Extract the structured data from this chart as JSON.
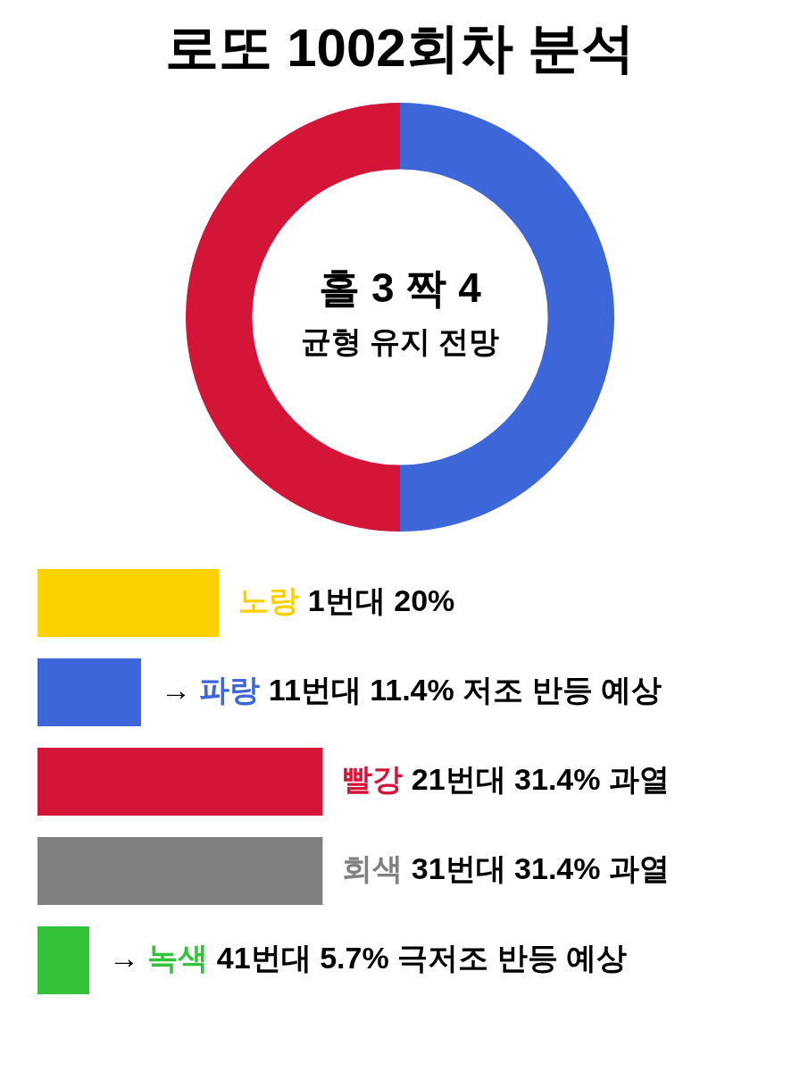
{
  "chart_data": [
    {
      "type": "donut",
      "title": "로또 1002회차 분석",
      "categories": [
        null,
        null
      ],
      "values": [
        50,
        50
      ],
      "colors": [
        "#3d66d8",
        "#d31638"
      ],
      "annotations": [
        "홀 3 짝 4",
        "균형 유지 전망"
      ]
    },
    {
      "type": "bar",
      "orientation": "horizontal",
      "categories": [
        null,
        null,
        null,
        null,
        null
      ],
      "values": [
        20,
        11.4,
        31.4,
        31.4,
        5.7
      ],
      "colors": [
        "#fbd100",
        "#3d66d8",
        "#d31638",
        "#808080",
        "#33c23a"
      ],
      "value_labels": [
        "노랑 1번대 20%",
        "→ 파랑 11번대 11.4% 저조 반등 예상",
        "빨강 21번대 31.4% 과열",
        "회색 31번대 31.4% 과열",
        "→ 녹색 41번대 5.7% 극저조 반등 예상"
      ]
    }
  ]
}
